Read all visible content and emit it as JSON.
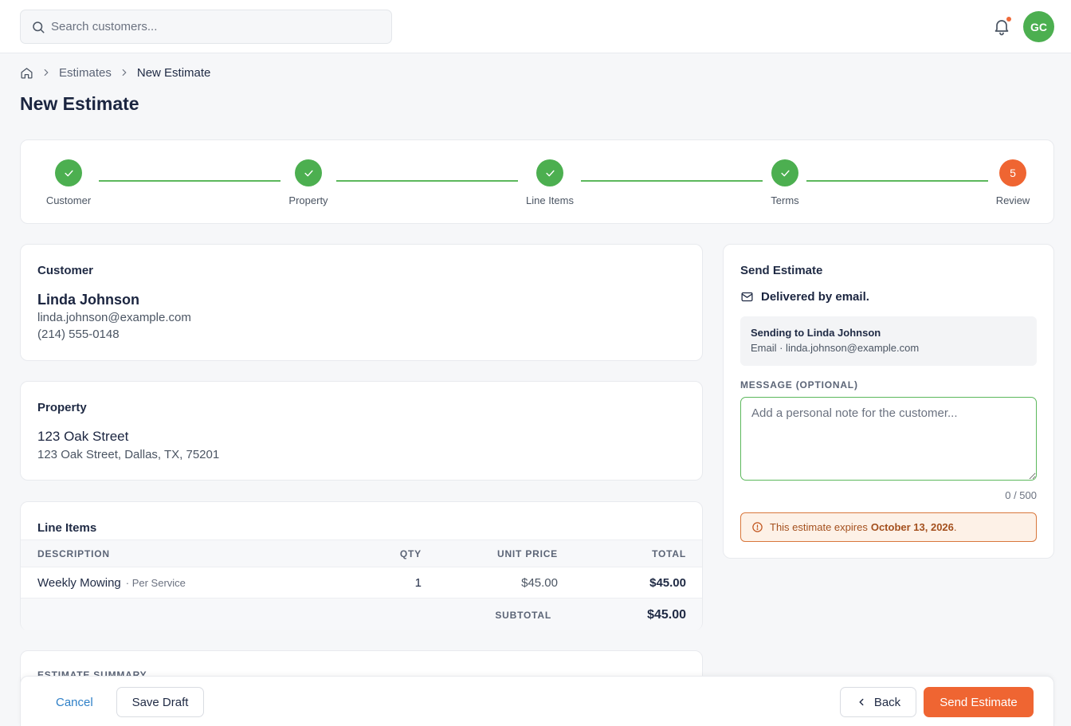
{
  "search": {
    "placeholder": "Search customers..."
  },
  "user": {
    "initials": "GC"
  },
  "breadcrumb": {
    "link": "Estimates",
    "current": "New Estimate"
  },
  "page": {
    "title": "New Estimate"
  },
  "steps": [
    {
      "label": "Customer",
      "status": "complete"
    },
    {
      "label": "Property",
      "status": "complete"
    },
    {
      "label": "Line Items",
      "status": "complete"
    },
    {
      "label": "Terms",
      "status": "complete"
    },
    {
      "label": "Review",
      "status": "active",
      "number": "5"
    }
  ],
  "customer": {
    "heading": "Customer",
    "name": "Linda Johnson",
    "email": "linda.johnson@example.com",
    "phone": "(214) 555-0148"
  },
  "property": {
    "heading": "Property",
    "name": "123 Oak Street",
    "address": "123 Oak Street, Dallas, TX, 75201"
  },
  "line_items": {
    "heading": "Line Items",
    "columns": [
      "DESCRIPTION",
      "QTY",
      "UNIT PRICE",
      "TOTAL"
    ],
    "rows": [
      {
        "description": "Weekly Mowing",
        "unit": "· Per Service",
        "qty": "1",
        "unit_price": "$45.00",
        "total": "$45.00"
      }
    ],
    "subtotal_label": "SUBTOTAL",
    "subtotal": "$45.00"
  },
  "summary": {
    "heading": "ESTIMATE SUMMARY"
  },
  "send": {
    "heading": "Send Estimate",
    "delivery": "Delivered by email.",
    "recipient_title": "Sending to Linda Johnson",
    "recipient_sub": "Email · linda.johnson@example.com",
    "message_label": "MESSAGE (OPTIONAL)",
    "message_placeholder": "Add a personal note for the customer...",
    "counter": "0 / 500",
    "expiry_prefix": "This estimate expires",
    "expiry_date": "October 13, 2026",
    "expiry_suffix": "."
  },
  "footer": {
    "cancel": "Cancel",
    "save_draft": "Save Draft",
    "back": "Back",
    "send": "Send Estimate"
  },
  "colors": {
    "accent": "#ef6532",
    "success": "#4caf50",
    "link": "#2f80c7"
  }
}
